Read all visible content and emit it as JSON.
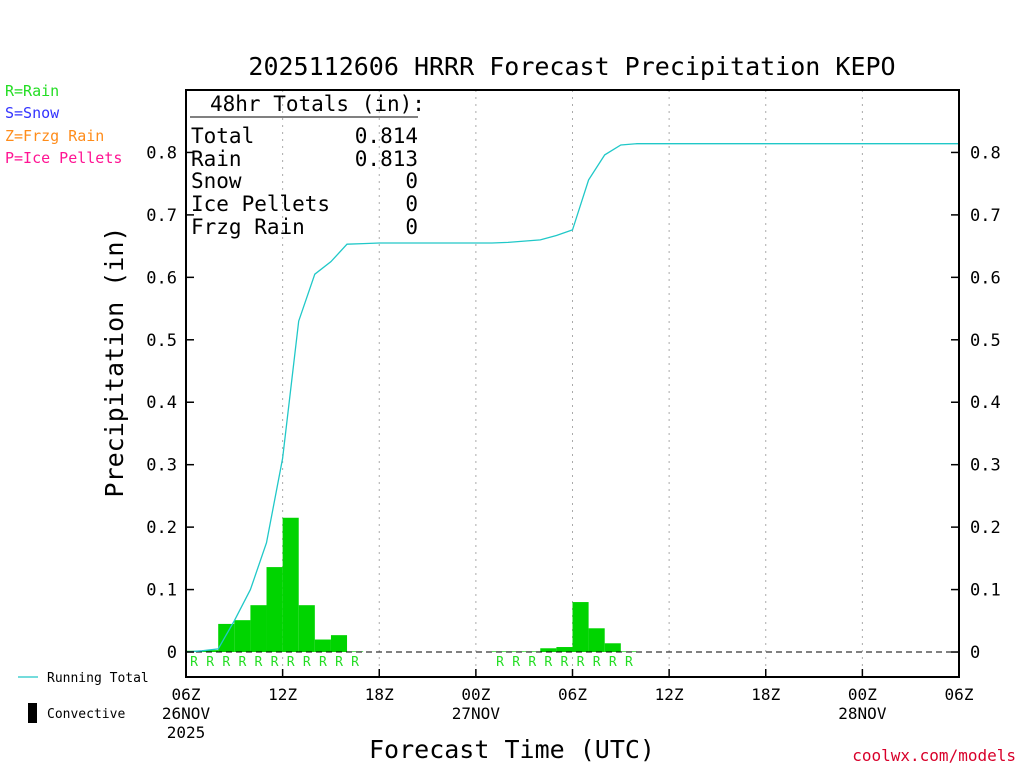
{
  "legend_top": [
    {
      "text": "R=Rain",
      "color": "#22dd22"
    },
    {
      "text": "S=Snow",
      "color": "#3333ff"
    },
    {
      "text": "Z=Frzg Rain",
      "color": "#ff8c1a"
    },
    {
      "text": "P=Ice Pellets",
      "color": "#ff1493"
    }
  ],
  "legend_bottom": {
    "running_total": "Running Total",
    "convective": "Convective",
    "running_total_color": "#20c8c8"
  },
  "totals": {
    "header": "48hr Totals (in):",
    "rows": [
      {
        "label": "Total",
        "value": "0.814"
      },
      {
        "label": "Rain",
        "value": "0.813"
      },
      {
        "label": "Snow",
        "value": "0"
      },
      {
        "label": "Ice Pellets",
        "value": "0"
      },
      {
        "label": "Frzg Rain",
        "value": "0"
      }
    ]
  },
  "credit": "coolwx.com/models",
  "credit_color": "#d8002a",
  "bar_color": "#00d400",
  "chart_data": {
    "type": "bar",
    "title": "2025112606 HRRR Forecast Precipitation KEPO",
    "xlabel": "Forecast Time (UTC)",
    "ylabel": "Precipitation (in)",
    "xlim": [
      0,
      48
    ],
    "ylim": [
      -0.04,
      0.9
    ],
    "yticks": [
      0,
      0.1,
      0.2,
      0.3,
      0.4,
      0.5,
      0.6,
      0.7,
      0.8
    ],
    "ytick_labels": [
      "0",
      "0.1",
      "0.2",
      "0.3",
      "0.4",
      "0.5",
      "0.6",
      "0.7",
      "0.8"
    ],
    "xticks": [
      {
        "h": 0,
        "lines": [
          "06Z",
          "26NOV",
          "2025"
        ]
      },
      {
        "h": 6,
        "lines": [
          "12Z"
        ]
      },
      {
        "h": 12,
        "lines": [
          "18Z"
        ]
      },
      {
        "h": 18,
        "lines": [
          "00Z",
          "27NOV"
        ]
      },
      {
        "h": 24,
        "lines": [
          "06Z"
        ]
      },
      {
        "h": 30,
        "lines": [
          "12Z"
        ]
      },
      {
        "h": 36,
        "lines": [
          "18Z"
        ]
      },
      {
        "h": 42,
        "lines": [
          "00Z",
          "28NOV"
        ]
      },
      {
        "h": 48,
        "lines": [
          "06Z"
        ]
      }
    ],
    "hourly_precip": [
      {
        "h": 1,
        "v": 0.002
      },
      {
        "h": 2,
        "v": 0.003
      },
      {
        "h": 3,
        "v": 0.045
      },
      {
        "h": 4,
        "v": 0.051
      },
      {
        "h": 5,
        "v": 0.075
      },
      {
        "h": 6,
        "v": 0.136
      },
      {
        "h": 7,
        "v": 0.215
      },
      {
        "h": 8,
        "v": 0.075
      },
      {
        "h": 9,
        "v": 0.02
      },
      {
        "h": 10,
        "v": 0.027
      },
      {
        "h": 11,
        "v": 0.001
      },
      {
        "h": 20,
        "v": 0.001
      },
      {
        "h": 21,
        "v": 0.001
      },
      {
        "h": 22,
        "v": 0.001
      },
      {
        "h": 23,
        "v": 0.006
      },
      {
        "h": 24,
        "v": 0.008
      },
      {
        "h": 25,
        "v": 0.08
      },
      {
        "h": 26,
        "v": 0.038
      },
      {
        "h": 27,
        "v": 0.014
      },
      {
        "h": 28,
        "v": 0.001
      }
    ],
    "precip_type_marks": [
      {
        "h": 1,
        "t": "R"
      },
      {
        "h": 2,
        "t": "R"
      },
      {
        "h": 3,
        "t": "R"
      },
      {
        "h": 4,
        "t": "R"
      },
      {
        "h": 5,
        "t": "R"
      },
      {
        "h": 6,
        "t": "R"
      },
      {
        "h": 7,
        "t": "R"
      },
      {
        "h": 8,
        "t": "R"
      },
      {
        "h": 9,
        "t": "R"
      },
      {
        "h": 10,
        "t": "R"
      },
      {
        "h": 11,
        "t": "R"
      },
      {
        "h": 20,
        "t": "R"
      },
      {
        "h": 21,
        "t": "R"
      },
      {
        "h": 22,
        "t": "R"
      },
      {
        "h": 23,
        "t": "R"
      },
      {
        "h": 24,
        "t": "R"
      },
      {
        "h": 25,
        "t": "R"
      },
      {
        "h": 26,
        "t": "R"
      },
      {
        "h": 27,
        "t": "R"
      },
      {
        "h": 28,
        "t": "R"
      }
    ],
    "running_total": [
      {
        "h": 0,
        "v": 0.0
      },
      {
        "h": 1,
        "v": 0.002
      },
      {
        "h": 2,
        "v": 0.005
      },
      {
        "h": 3,
        "v": 0.05
      },
      {
        "h": 4,
        "v": 0.1
      },
      {
        "h": 5,
        "v": 0.175
      },
      {
        "h": 6,
        "v": 0.31
      },
      {
        "h": 7,
        "v": 0.53
      },
      {
        "h": 8,
        "v": 0.605
      },
      {
        "h": 9,
        "v": 0.625
      },
      {
        "h": 10,
        "v": 0.653
      },
      {
        "h": 11,
        "v": 0.654
      },
      {
        "h": 12,
        "v": 0.655
      },
      {
        "h": 18,
        "v": 0.655
      },
      {
        "h": 19,
        "v": 0.655
      },
      {
        "h": 20,
        "v": 0.656
      },
      {
        "h": 21,
        "v": 0.658
      },
      {
        "h": 22,
        "v": 0.66
      },
      {
        "h": 23,
        "v": 0.667
      },
      {
        "h": 24,
        "v": 0.676
      },
      {
        "h": 25,
        "v": 0.756
      },
      {
        "h": 26,
        "v": 0.796
      },
      {
        "h": 27,
        "v": 0.812
      },
      {
        "h": 28,
        "v": 0.814
      },
      {
        "h": 29,
        "v": 0.814
      },
      {
        "h": 48,
        "v": 0.814
      }
    ]
  }
}
